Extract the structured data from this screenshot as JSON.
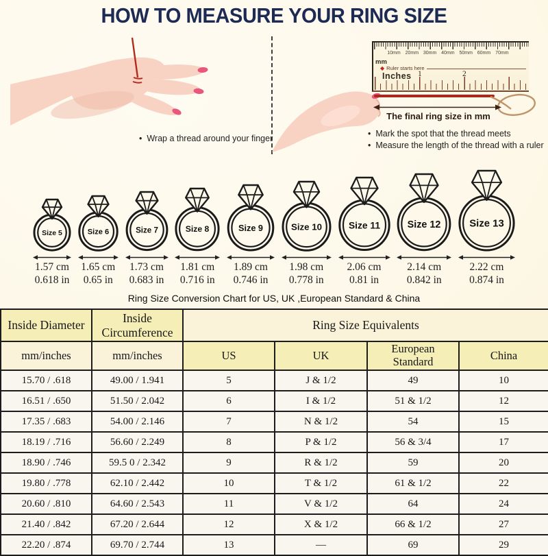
{
  "page": {
    "title": "HOW TO MEASURE YOUR RING SIZE"
  },
  "steps": {
    "left_bullet": "Wrap a thread around your finger",
    "right_bullets": [
      "Mark the spot that the thread meets",
      "Measure the length of the thread with a ruler"
    ]
  },
  "ruler": {
    "mm_labels": [
      "10mm",
      "20mm",
      "30mm",
      "40mm",
      "50mm",
      "60mm",
      "70mm"
    ],
    "mm_unit": "mm",
    "starts_here": "Ruler starts here",
    "inches_unit": "Inches",
    "inch_numbers": [
      "1",
      "2"
    ],
    "result_label": "The final ring size in mm"
  },
  "rings": [
    {
      "label": "Size 5",
      "cm": "1.57 cm",
      "inches": "0.618 in"
    },
    {
      "label": "Size 6",
      "cm": "1.65 cm",
      "inches": "0.65 in"
    },
    {
      "label": "Size 7",
      "cm": "1.73 cm",
      "inches": "0.683 in"
    },
    {
      "label": "Size 8",
      "cm": "1.81 cm",
      "inches": "0.716 in"
    },
    {
      "label": "Size 9",
      "cm": "1.89 cm",
      "inches": "0.746 in"
    },
    {
      "label": "Size 10",
      "cm": "1.98 cm",
      "inches": "0.778 in"
    },
    {
      "label": "Size 11",
      "cm": "2.06 cm",
      "inches": "0.81 in"
    },
    {
      "label": "Size 12",
      "cm": "2.14 cm",
      "inches": "0.842 in"
    },
    {
      "label": "Size 13",
      "cm": "2.22 cm",
      "inches": "0.874 in"
    }
  ],
  "conversion": {
    "caption": "Ring Size Conversion Chart for US, UK ,European Standard & China",
    "group_headers": [
      "Inside Diameter",
      "Inside Circumference",
      "Ring Size Equivalents"
    ],
    "sub_headers": [
      "mm/inches",
      "mm/inches",
      "US",
      "UK",
      "European Standard",
      "China"
    ],
    "rows": [
      [
        "15.70 / .618",
        "49.00 / 1.941",
        "5",
        "J & 1/2",
        "49",
        "10"
      ],
      [
        "16.51 / .650",
        "51.50 / 2.042",
        "6",
        "I & 1/2",
        "51 & 1/2",
        "12"
      ],
      [
        "17.35 / .683",
        "54.00 / 2.146",
        "7",
        "N & 1/2",
        "54",
        "15"
      ],
      [
        "18.19 / .716",
        "56.60 / 2.249",
        "8",
        "P & 1/2",
        "56 & 3/4",
        "17"
      ],
      [
        "18.90 / .746",
        "59.5 0 / 2.342",
        "9",
        "R & 1/2",
        "59",
        "20"
      ],
      [
        "19.80 / .778",
        "62.10 / 2.442",
        "10",
        "T & 1/2",
        "61 & 1/2",
        "22"
      ],
      [
        "20.60 / .810",
        "64.60 / 2.543",
        "11",
        "V & 1/2",
        "64",
        "24"
      ],
      [
        "21.40 / .842",
        "67.20 / 2.644",
        "12",
        "X & 1/2",
        "66 & 1/2",
        "27"
      ],
      [
        "22.20 / .874",
        "69.70 / 2.744",
        "13",
        "—",
        "69",
        "29"
      ]
    ]
  },
  "colors": {
    "title_navy": "#1c2a54",
    "thread_red": "#a8281c",
    "thread_tan": "#bf9468",
    "header_yellow": "#f5eeb6",
    "header_cream": "#faf3da",
    "background_cream": "#fdf9ea",
    "line_black": "#1c1c1c"
  }
}
